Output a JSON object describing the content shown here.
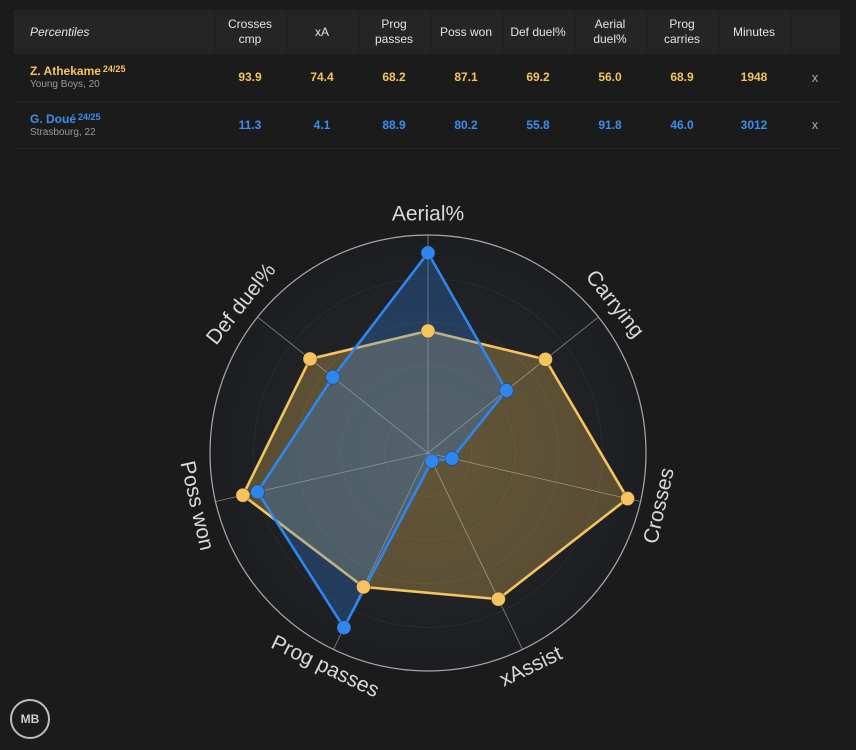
{
  "table": {
    "header_label": "Percentiles",
    "columns": [
      [
        "Crosses",
        "cmp"
      ],
      [
        "xA"
      ],
      [
        "Prog",
        "passes"
      ],
      [
        "Poss won"
      ],
      [
        "Def duel%"
      ],
      [
        "Aerial",
        "duel%"
      ],
      [
        "Prog",
        "carries"
      ],
      [
        "Minutes"
      ]
    ],
    "rows": [
      {
        "name": "Z. Athekame",
        "season": "24/25",
        "team": "Young Boys, 20",
        "values": [
          "93.9",
          "74.4",
          "68.2",
          "87.1",
          "69.2",
          "56.0",
          "68.9",
          "1948"
        ],
        "remove_label": "x"
      },
      {
        "name": "G. Doué",
        "season": "24/25",
        "team": "Strasbourg, 22",
        "values": [
          "11.3",
          "4.1",
          "88.9",
          "80.2",
          "55.8",
          "91.8",
          "46.0",
          "3012"
        ],
        "remove_label": "x"
      }
    ]
  },
  "logo_text": "MB",
  "chart_data": {
    "type": "radar",
    "axes": [
      "Aerial%",
      "Carrying",
      "Crosses",
      "xAssist",
      "Prog passes",
      "Poss won",
      "Def duel%"
    ],
    "range": [
      0,
      100
    ],
    "rings": [
      20,
      40,
      60,
      80,
      100
    ],
    "series": [
      {
        "values": [
          56.0,
          68.9,
          93.9,
          74.4,
          68.2,
          87.1,
          69.2
        ],
        "color": "#f5c45e"
      },
      {
        "values": [
          91.8,
          46.0,
          11.3,
          4.1,
          88.9,
          80.2,
          55.8
        ],
        "color": "#2f86ee"
      }
    ],
    "colors": {
      "ring": "#b8b8b8",
      "spoke": "#a8a8a8",
      "label": "#d9d9d9"
    }
  }
}
